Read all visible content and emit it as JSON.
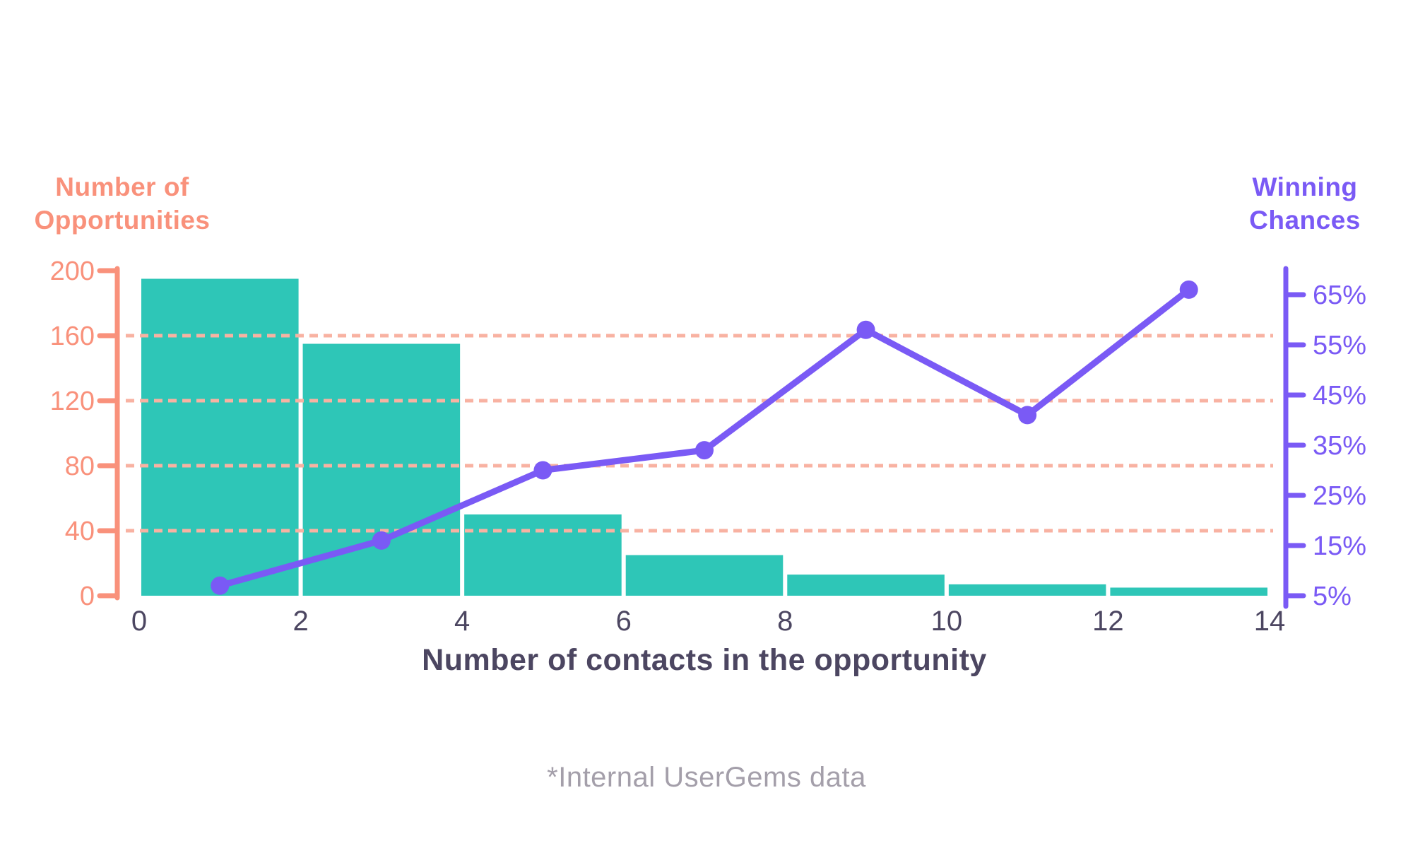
{
  "left_axis_title": {
    "line1": "Number of",
    "line2": "Opportunities"
  },
  "right_axis_title": {
    "line1": "Winning",
    "line2": "Chances"
  },
  "x_axis_title": "Number of contacts in the opportunity",
  "footer_note": "*Internal UserGems data",
  "colors": {
    "bar_teal": "#2EC6B7",
    "line_purple": "#7A5AF5",
    "axis_salmon": "#F9917B",
    "grid_salmon": "#F8B2A2",
    "text_dark": "#4C4661",
    "footer_gray": "#A49FAA",
    "background": "#FFFFFF"
  },
  "chart_data": {
    "type": "combo",
    "title": "",
    "xlabel": "Number of contacts in the opportunity",
    "x_ticks": [
      0,
      2,
      4,
      6,
      8,
      10,
      12,
      14
    ],
    "xlim": [
      0,
      14
    ],
    "grid": "horizontal-dashed",
    "legend": "none",
    "left_axis": {
      "label": "Number of Opportunities",
      "range": [
        0,
        200
      ],
      "ticks": [
        200,
        160,
        120,
        80,
        40,
        0
      ],
      "gridlines": [
        160,
        120,
        80,
        40
      ],
      "color": "#F9917B",
      "grid_color": "#F8B2A2"
    },
    "right_axis": {
      "label": "Winning Chances",
      "range_pct": [
        5,
        65
      ],
      "ticks": [
        "65%",
        "55%",
        "45%",
        "35%",
        "25%",
        "15%",
        "5%"
      ],
      "tick_values": [
        65,
        55,
        45,
        35,
        25,
        15,
        5
      ],
      "color": "#7A5AF5"
    },
    "series": [
      {
        "name": "Number of Opportunities",
        "type": "bar",
        "axis": "left",
        "color": "#2EC6B7",
        "categories": [
          "0-2",
          "2-4",
          "4-6",
          "6-8",
          "8-10",
          "10-12",
          "12-14"
        ],
        "values": [
          195,
          155,
          50,
          25,
          13,
          7,
          5
        ]
      },
      {
        "name": "Winning Chances",
        "type": "line",
        "axis": "right",
        "color": "#7A5AF5",
        "x": [
          1,
          3,
          5,
          7,
          9,
          11,
          13
        ],
        "values_pct": [
          7,
          16,
          30,
          34,
          58,
          41,
          66
        ]
      }
    ]
  }
}
